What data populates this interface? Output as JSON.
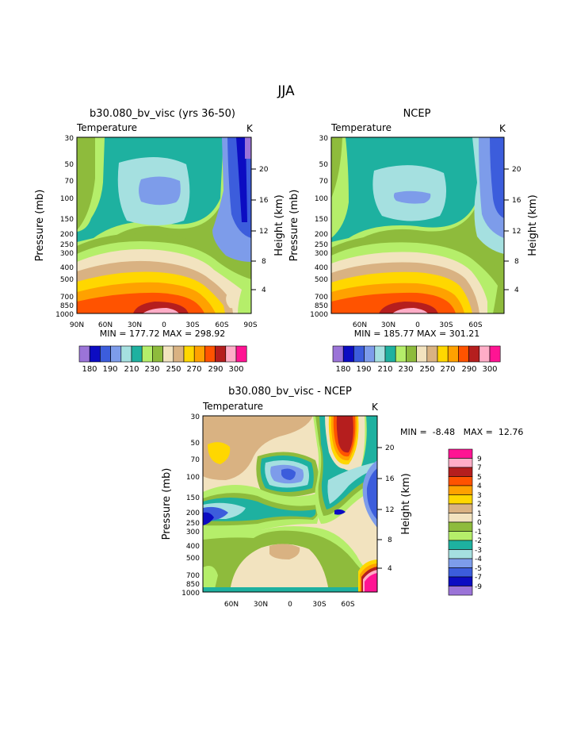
{
  "page_title": "JJA",
  "colors": {
    "c0": "#9b74d8",
    "c1": "#0c0cc2",
    "c2": "#3c5ddc",
    "c3": "#7d9cea",
    "c4": "#a5e0e0",
    "c5": "#1eb1a0",
    "c6": "#b5ee6a",
    "c7": "#8ebb3c",
    "c8": "#f2e3bf",
    "c9": "#d9b282",
    "c10": "#ffd700",
    "c11": "#ffa100",
    "c12": "#ff5300",
    "c13": "#b51e1e",
    "c14": "#ffadc7",
    "c15": "#ff1493"
  },
  "panels": [
    {
      "title": "b30.080_bv_visc (yrs 36-50)",
      "subtitle": "Temperature",
      "units": "K",
      "min_max": "MIN = 177.72   MAX = 298.92",
      "xlabels": [
        "90N",
        "60N",
        "30N",
        "0",
        "30S",
        "60S",
        "90S"
      ],
      "colorbar_labels": [
        "180",
        "190",
        "210",
        "230",
        "250",
        "270",
        "290",
        "300"
      ]
    },
    {
      "title": "NCEP",
      "subtitle": "Temperature",
      "units": "K",
      "min_max": "MIN = 185.77   MAX = 301.21",
      "xlabels": [
        "60N",
        "30N",
        "0",
        "30S",
        "60S"
      ],
      "colorbar_labels": [
        "180",
        "190",
        "210",
        "230",
        "250",
        "270",
        "290",
        "300"
      ]
    },
    {
      "title": "b30.080_bv_visc - NCEP",
      "subtitle": "Temperature",
      "units": "K",
      "min_max": "MIN =  -8.48   MAX =  12.76",
      "xlabels": [
        "60N",
        "30N",
        "0",
        "30S",
        "60S"
      ],
      "colorbar_labels": [
        "9",
        "7",
        "5",
        "4",
        "3",
        "2",
        "1",
        "0",
        "-1",
        "-2",
        "-3",
        "-4",
        "-5",
        "-7",
        "-9"
      ]
    }
  ],
  "axis": {
    "ylabel": "Pressure (mb)",
    "y2label": "Height (km)",
    "pressure_ticks": [
      "30",
      "50",
      "70",
      "100",
      "150",
      "200",
      "250",
      "300",
      "400",
      "500",
      "700",
      "850",
      "1000"
    ],
    "height_ticks": [
      "20",
      "16",
      "12",
      "8",
      "4"
    ]
  },
  "chart_data": [
    {
      "type": "heatmap",
      "title": "b30.080_bv_visc (yrs 36-50)",
      "subtitle": "Temperature",
      "units": "K",
      "x": [
        "90N",
        "60N",
        "30N",
        "0",
        "30S",
        "60S",
        "90S"
      ],
      "y_pressure_mb": [
        30,
        50,
        70,
        100,
        150,
        200,
        250,
        300,
        400,
        500,
        700,
        850,
        1000
      ],
      "y2_height_km": [
        20,
        16,
        12,
        8,
        4
      ],
      "contour_levels": [
        180,
        185,
        190,
        200,
        210,
        220,
        230,
        240,
        250,
        260,
        270,
        280,
        290,
        295,
        300
      ],
      "min": 177.72,
      "max": 298.92
    },
    {
      "type": "heatmap",
      "title": "NCEP",
      "subtitle": "Temperature",
      "units": "K",
      "x": [
        "60N",
        "30N",
        "0",
        "30S",
        "60S"
      ],
      "y_pressure_mb": [
        30,
        50,
        70,
        100,
        150,
        200,
        250,
        300,
        400,
        500,
        700,
        850,
        1000
      ],
      "y2_height_km": [
        20,
        16,
        12,
        8,
        4
      ],
      "contour_levels": [
        180,
        185,
        190,
        200,
        210,
        220,
        230,
        240,
        250,
        260,
        270,
        280,
        290,
        295,
        300
      ],
      "min": 185.77,
      "max": 301.21
    },
    {
      "type": "heatmap",
      "title": "b30.080_bv_visc - NCEP",
      "subtitle": "Temperature",
      "units": "K",
      "x": [
        "60N",
        "30N",
        "0",
        "30S",
        "60S"
      ],
      "y_pressure_mb": [
        30,
        50,
        70,
        100,
        150,
        200,
        250,
        300,
        400,
        500,
        700,
        850,
        1000
      ],
      "y2_height_km": [
        20,
        16,
        12,
        8,
        4
      ],
      "contour_levels": [
        -9,
        -7,
        -5,
        -4,
        -3,
        -2,
        -1,
        0,
        1,
        2,
        3,
        4,
        5,
        7,
        9
      ],
      "min": -8.48,
      "max": 12.76
    }
  ]
}
